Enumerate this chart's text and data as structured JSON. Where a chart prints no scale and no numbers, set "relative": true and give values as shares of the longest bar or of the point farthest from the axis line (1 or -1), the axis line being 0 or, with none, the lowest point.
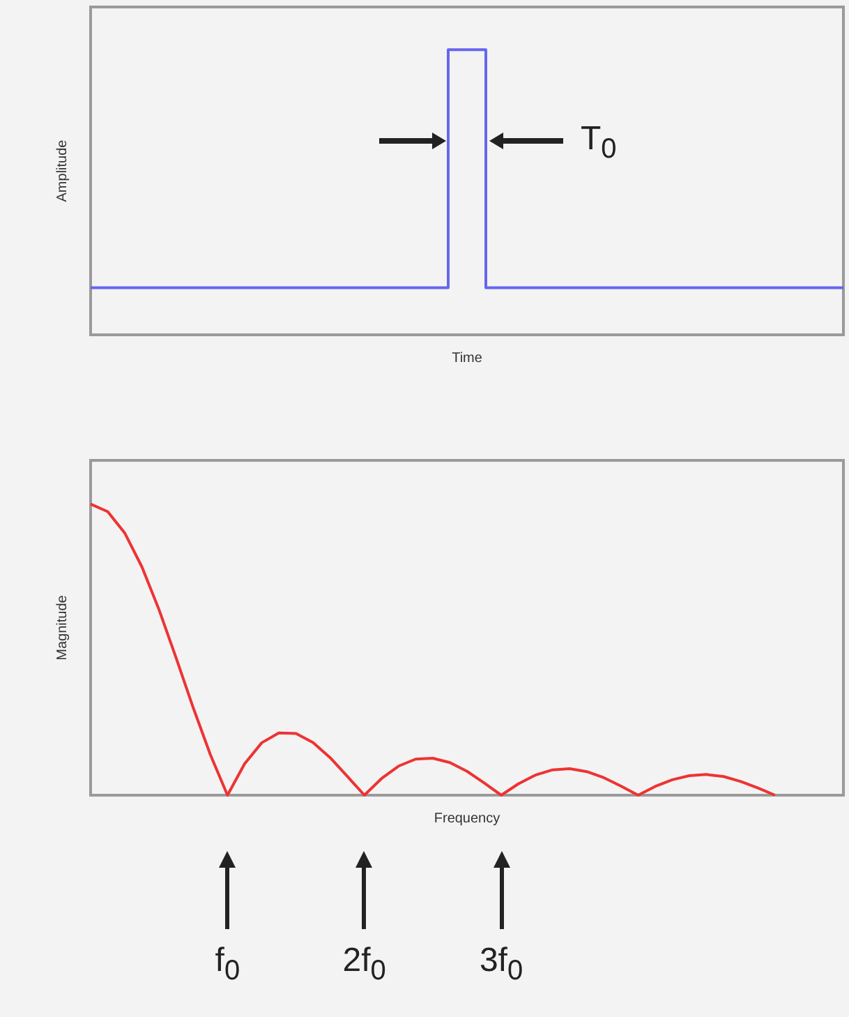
{
  "chart_data": [
    {
      "type": "step",
      "xlabel": "Time",
      "ylabel": "Amplitude",
      "relative": true,
      "tick_labels": false,
      "color": "#6666ee",
      "annotations": [
        "T$_{0}$"
      ],
      "categories": [
        null,
        null,
        null,
        null,
        null,
        null,
        null,
        null,
        null,
        null,
        null,
        null,
        null,
        null,
        null,
        null,
        null,
        null,
        null,
        null,
        null
      ],
      "values": [
        0.165,
        0.165,
        0.165,
        0.165,
        0.165,
        0.165,
        0.165,
        0.165,
        0.165,
        0.165,
        1,
        0.165,
        0.165,
        0.165,
        0.165,
        0.165,
        0.165,
        0.165,
        0.165,
        0.165,
        0.165
      ]
    },
    {
      "type": "line",
      "xlabel": "Frequency",
      "ylabel": "Magnitude",
      "relative": true,
      "tick_labels": false,
      "color": "#ee3333",
      "annotations": [
        "f$_{0}$",
        "2f$_{0}$",
        "3f$_{0}$"
      ],
      "categories": [
        null,
        null,
        null,
        null,
        null,
        null,
        null,
        null,
        null,
        null,
        null,
        null,
        null,
        null,
        null,
        null,
        null,
        null,
        null,
        null,
        null,
        null,
        null,
        null,
        null,
        null,
        null,
        null,
        null,
        null,
        null,
        null,
        null,
        null,
        null,
        null,
        null,
        null,
        null,
        null,
        null,
        null,
        null,
        null,
        null
      ],
      "values": [
        1,
        0.974,
        0.9,
        0.784,
        0.637,
        0.471,
        0.3,
        0.139,
        0,
        0.108,
        0.18,
        0.214,
        0.212,
        0.181,
        0.129,
        0.065,
        0,
        0.057,
        0.1,
        0.124,
        0.127,
        0.112,
        0.082,
        0.042,
        0,
        0.039,
        0.069,
        0.087,
        0.091,
        0.081,
        0.06,
        0.031,
        0,
        0.03,
        0.053,
        0.067,
        0.071,
        0.064,
        0.047,
        0.025,
        0,
        null,
        null,
        null,
        null
      ]
    }
  ]
}
